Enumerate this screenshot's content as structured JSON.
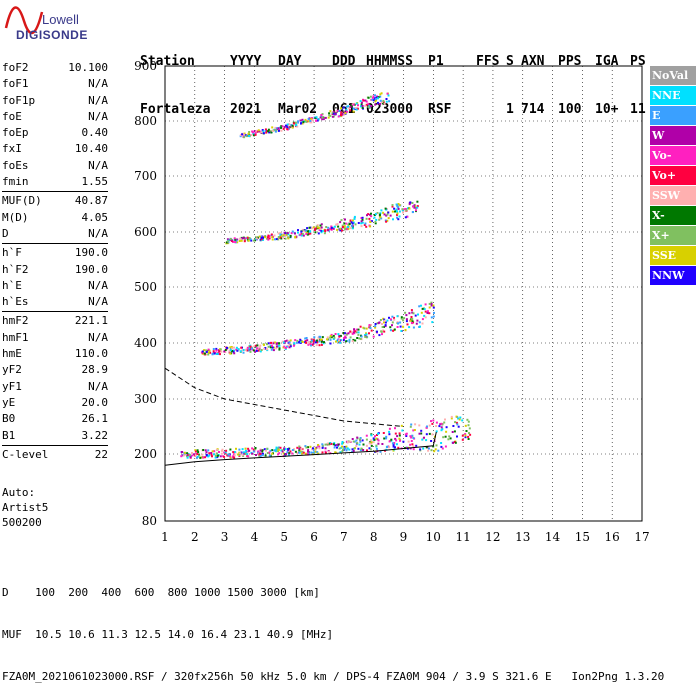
{
  "logo": {
    "line1": "Lowell",
    "line2": "DIGISONDE"
  },
  "header": {
    "row1": [
      "Station",
      "YYYY",
      "DAY",
      "DDD",
      "HHMMSS",
      "P1",
      "FFS",
      "S",
      "AXN",
      "PPS",
      "IGA",
      "PS"
    ],
    "row2": [
      "Fortaleza",
      "2021",
      "Mar02",
      "061",
      "023000",
      "RSF",
      "1",
      "714",
      "100",
      "10+",
      "11"
    ]
  },
  "params": {
    "group1": [
      {
        "label": "foF2",
        "value": "10.100"
      },
      {
        "label": "foF1",
        "value": "N/A"
      },
      {
        "label": "foF1p",
        "value": "N/A"
      },
      {
        "label": "foE",
        "value": "N/A"
      },
      {
        "label": "foEp",
        "value": "0.40"
      },
      {
        "label": "fxI",
        "value": "10.40"
      },
      {
        "label": "foEs",
        "value": "N/A"
      },
      {
        "label": "fmin",
        "value": "1.55"
      }
    ],
    "group2": [
      {
        "label": "MUF(D)",
        "value": "40.87"
      },
      {
        "label": "M(D)",
        "value": "4.05"
      },
      {
        "label": "D",
        "value": "N/A"
      }
    ],
    "group3": [
      {
        "label": "h`F",
        "value": "190.0"
      },
      {
        "label": "h`F2",
        "value": "190.0"
      },
      {
        "label": "h`E",
        "value": "N/A"
      },
      {
        "label": "h`Es",
        "value": "N/A"
      }
    ],
    "group4": [
      {
        "label": "hmF2",
        "value": "221.1"
      },
      {
        "label": "hmF1",
        "value": "N/A"
      },
      {
        "label": "hmE",
        "value": "110.0"
      },
      {
        "label": "yF2",
        "value": "28.9"
      },
      {
        "label": "yF1",
        "value": "N/A"
      },
      {
        "label": "yE",
        "value": "20.0"
      },
      {
        "label": "B0",
        "value": "26.1"
      },
      {
        "label": "B1",
        "value": "3.22"
      }
    ],
    "group5": [
      {
        "label": "C-level",
        "value": "22"
      }
    ]
  },
  "auto": {
    "line1": "Auto:",
    "line2": "Artist5",
    "line3": "500200"
  },
  "legend": [
    {
      "label": "NoVal",
      "color": "#a0a0a0"
    },
    {
      "label": "NNE",
      "color": "#00e0ff"
    },
    {
      "label": "E",
      "color": "#3aa0ff"
    },
    {
      "label": "W",
      "color": "#b000a8"
    },
    {
      "label": "Vo-",
      "color": "#ff20c0"
    },
    {
      "label": "Vo+",
      "color": "#ff0040"
    },
    {
      "label": "SSW",
      "color": "#ffb0b0"
    },
    {
      "label": "X-",
      "color": "#007800"
    },
    {
      "label": "X+",
      "color": "#80c060"
    },
    {
      "label": "SSE",
      "color": "#d8d000"
    },
    {
      "label": "NNW",
      "color": "#2000ff"
    }
  ],
  "footer": {
    "line1": "D    100  200  400  600  800 1000 1500 3000 [km]",
    "line2": "MUF  10.5 10.6 11.3 12.5 14.0 16.4 23.1 40.9 [MHz]",
    "line3": "FZA0M_2021061023000.RSF / 320fx256h 50 kHz 5.0 km / DPS-4 FZA0M 904 / 3.9 S 321.6 E   Ion2Png 1.3.20"
  },
  "chart_data": {
    "type": "scatter",
    "xlim": [
      1,
      17
    ],
    "ylim": [
      80,
      900
    ],
    "x_ticks": [
      1,
      2,
      3,
      4,
      5,
      6,
      7,
      8,
      9,
      10,
      11,
      12,
      13,
      14,
      15,
      16,
      17
    ],
    "y_ticks": [
      80,
      200,
      300,
      400,
      500,
      600,
      700,
      800,
      900
    ],
    "grid": true,
    "series": [
      {
        "name": "trace-1",
        "type": "band",
        "x": [
          1.5,
          2,
          2.5,
          3,
          4,
          5,
          6,
          7,
          7.5,
          8,
          8.5,
          9,
          9.5,
          10,
          10.5,
          11.2
        ],
        "y": [
          200,
          202,
          203,
          203,
          205,
          206,
          210,
          215,
          220,
          222,
          228,
          230,
          232,
          235,
          245,
          248
        ],
        "spread": [
          6,
          8,
          8,
          8,
          8,
          8,
          9,
          10,
          14,
          18,
          20,
          25,
          25,
          30,
          30,
          20
        ]
      },
      {
        "name": "trace-2",
        "type": "band",
        "x": [
          2.2,
          3,
          4,
          5,
          6,
          7,
          8,
          8.5,
          9,
          9.5,
          10
        ],
        "y": [
          385,
          388,
          392,
          398,
          405,
          412,
          425,
          435,
          440,
          450,
          455
        ],
        "spread": [
          4,
          6,
          6,
          8,
          8,
          10,
          14,
          16,
          18,
          20,
          20
        ]
      },
      {
        "name": "trace-3",
        "type": "band",
        "x": [
          3,
          4,
          5,
          6,
          7,
          8,
          8.5,
          9,
          9.5
        ],
        "y": [
          585,
          590,
          595,
          605,
          615,
          625,
          635,
          640,
          650
        ],
        "spread": [
          4,
          4,
          6,
          8,
          10,
          12,
          14,
          14,
          14
        ]
      },
      {
        "name": "trace-4",
        "type": "band",
        "x": [
          3.5,
          4,
          5,
          6,
          7,
          7.5,
          8,
          8.5
        ],
        "y": [
          775,
          780,
          790,
          805,
          820,
          830,
          840,
          845
        ],
        "spread": [
          4,
          4,
          5,
          6,
          8,
          8,
          10,
          10
        ]
      },
      {
        "name": "profile",
        "type": "line",
        "style": "solid",
        "x": [
          1,
          2,
          3,
          4,
          5,
          6,
          7,
          8,
          9,
          10,
          10.1
        ],
        "y": [
          180,
          186,
          190,
          193,
          196,
          199,
          202,
          205,
          210,
          215,
          240
        ]
      },
      {
        "name": "profile-upper",
        "type": "line",
        "style": "dashed",
        "x": [
          1,
          2,
          3,
          4,
          5,
          6,
          7,
          8,
          9
        ],
        "y": [
          355,
          320,
          300,
          290,
          280,
          270,
          260,
          255,
          250
        ]
      }
    ]
  }
}
